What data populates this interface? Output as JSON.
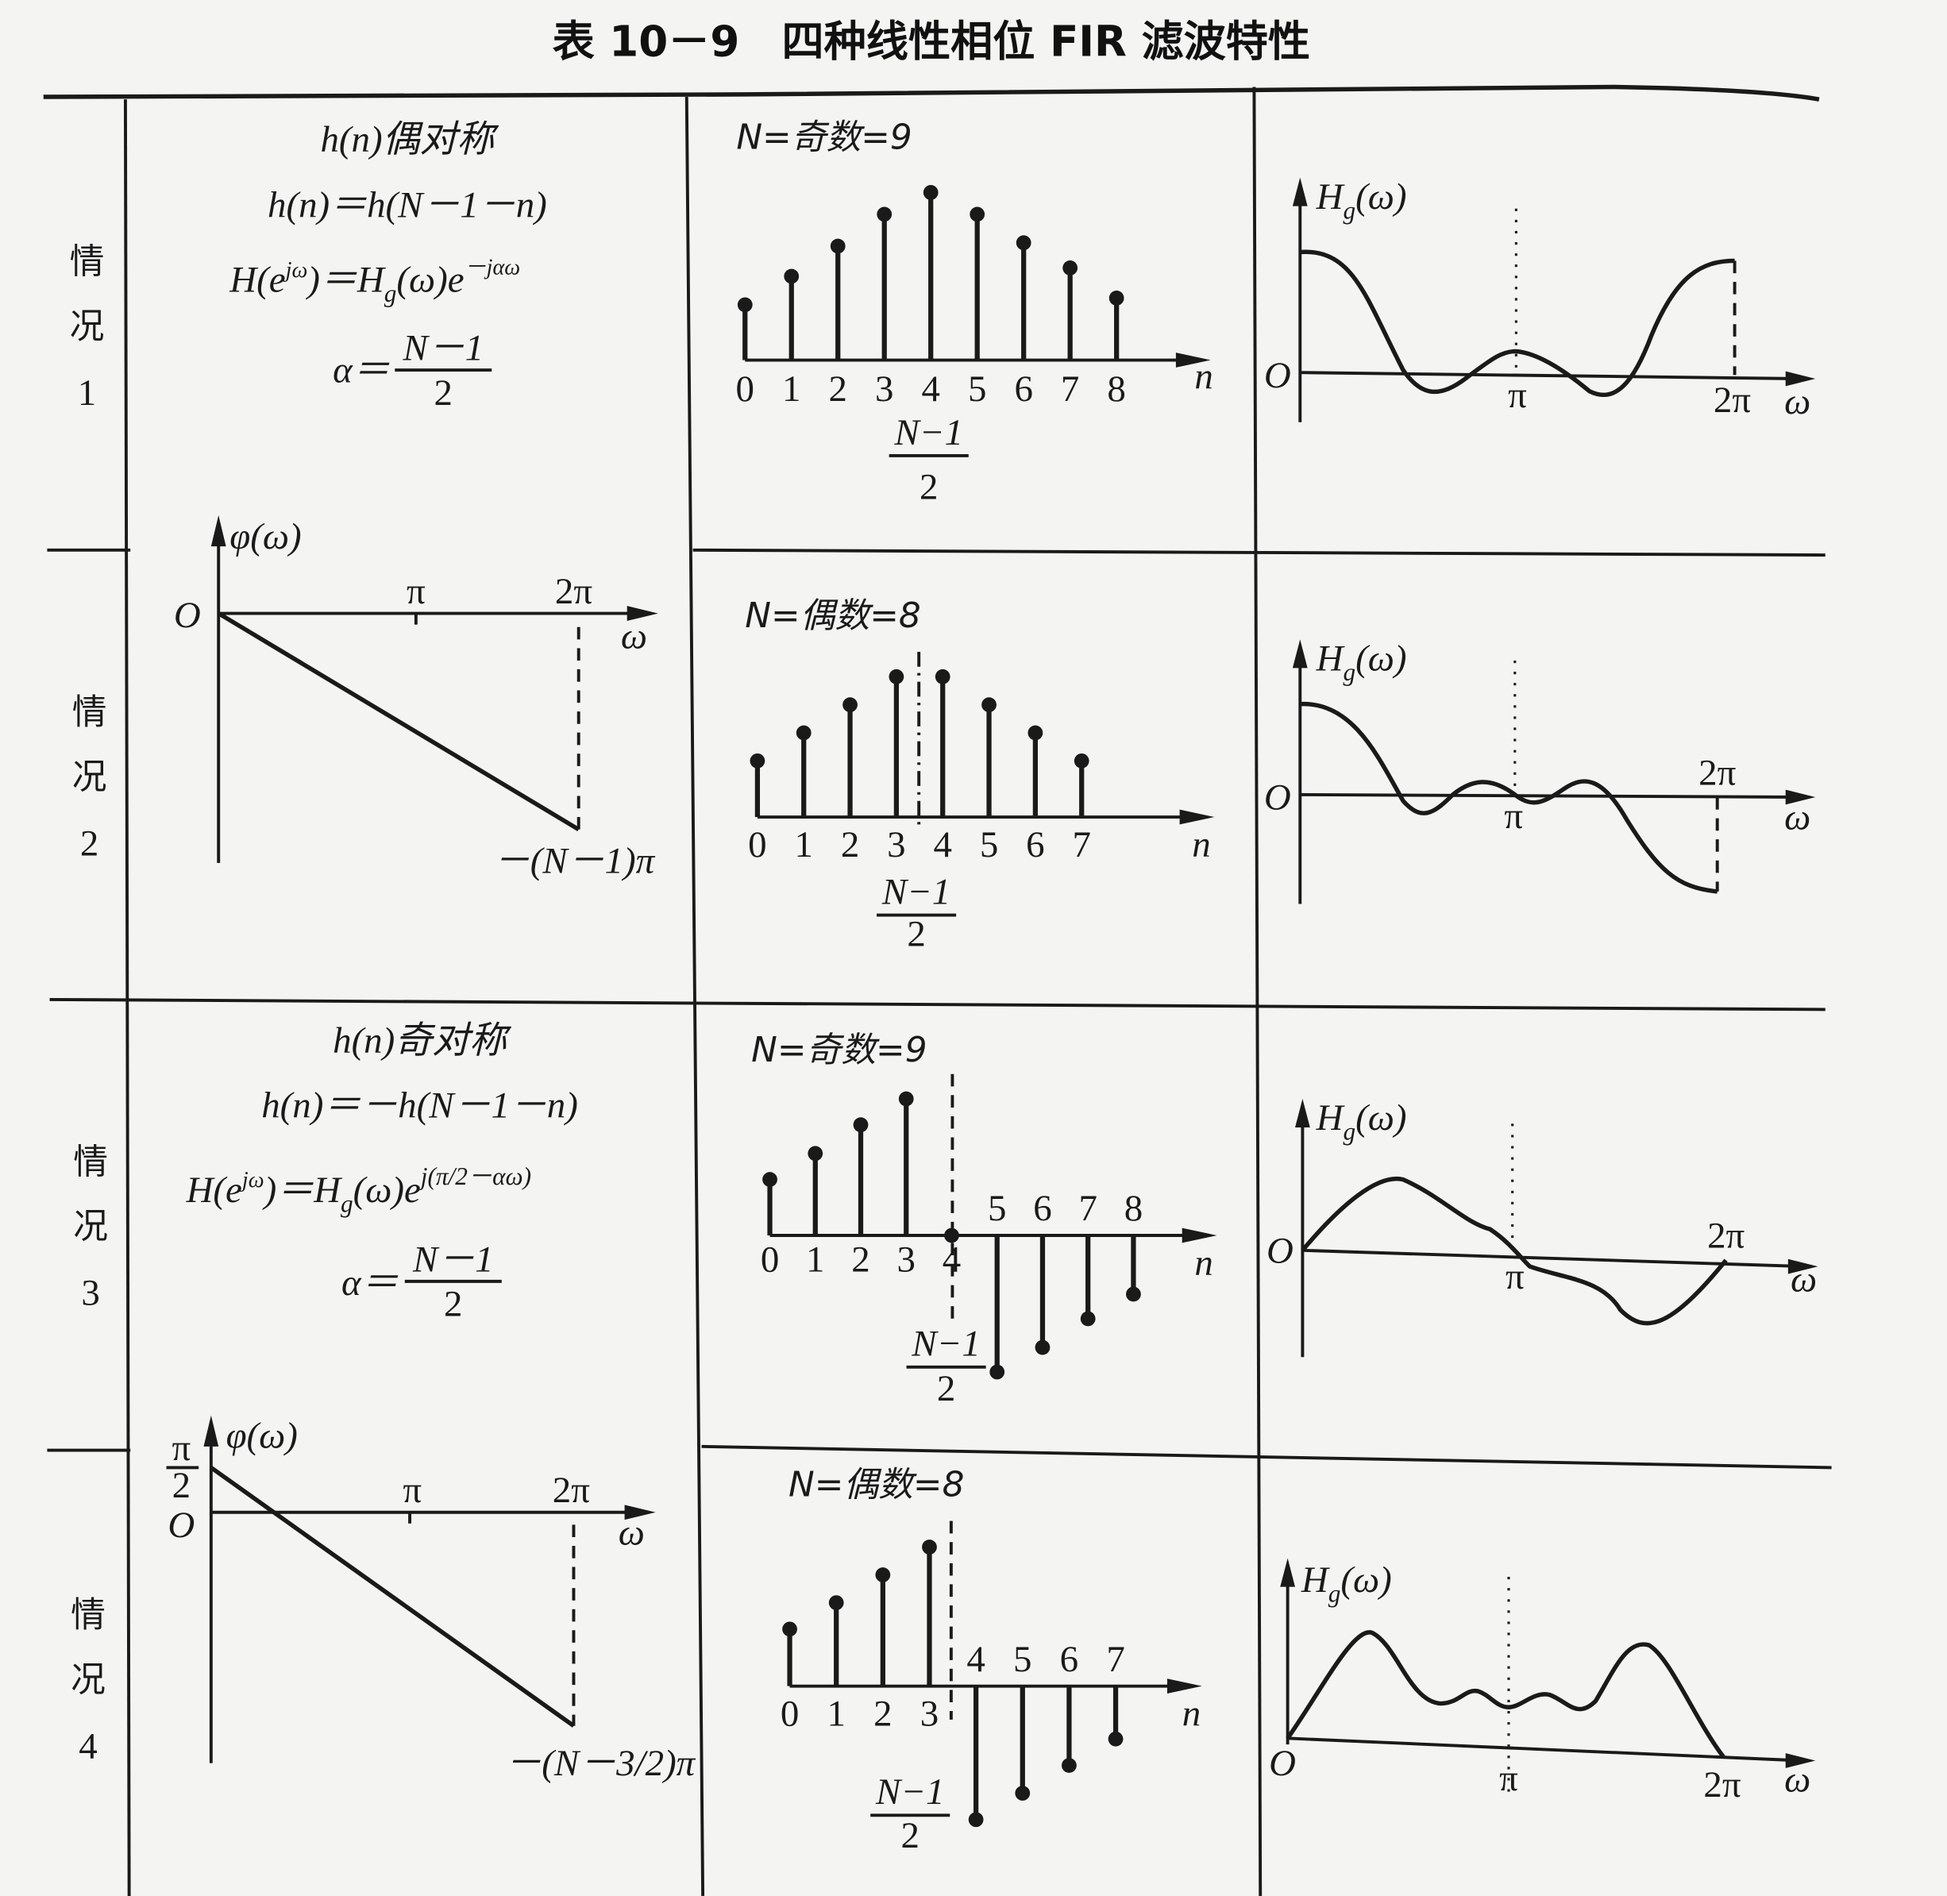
{
  "title": "表 10－9　四种线性相位 FIR 滤波特性",
  "cases": [
    {
      "c1": "情",
      "c2": "况",
      "num": "1"
    },
    {
      "c1": "情",
      "c2": "况",
      "num": "2"
    },
    {
      "c1": "情",
      "c2": "况",
      "num": "3"
    },
    {
      "c1": "情",
      "c2": "况",
      "num": "4"
    }
  ],
  "even_formulas": {
    "symmetry": "h(n)偶对称",
    "relation": "h(n)＝h(N－1－n)",
    "h_a": "H(e",
    "h_sup1": "jω",
    "h_b": ")＝H",
    "h_sub": "g",
    "h_c": "(ω)e",
    "h_sup2": "－jαω",
    "alpha": "α＝",
    "alpha_num": "N－1",
    "alpha_den": "2"
  },
  "odd_formulas": {
    "symmetry": "h(n)奇对称",
    "relation": "h(n)＝－h(N－1－n)",
    "h_a": "H(e",
    "h_sup1": "jω",
    "h_b": ")＝H",
    "h_sub": "g",
    "h_c": "(ω)e",
    "h_sup2": "j(π/2－αω)",
    "alpha": "α＝",
    "alpha_num": "N－1",
    "alpha_den": "2"
  },
  "phase_plots": [
    {
      "ylabel": "φ(ω)",
      "origin": "O",
      "pi": "π",
      "two_pi": "2π",
      "xlabel": "ω",
      "end_label": "－(N－1)π",
      "start_value": "0"
    },
    {
      "ylabel": "φ(ω)",
      "origin": "O",
      "pi": "π",
      "two_pi": "2π",
      "xlabel": "ω",
      "end_label": "－(N－3/2)π",
      "start_num": "π",
      "start_den": "2"
    }
  ],
  "stem_plots": [
    {
      "label": "N=奇数=9",
      "xlabel": "n",
      "center_num": "N−1",
      "center_den": "2",
      "n": [
        "0",
        "1",
        "2",
        "3",
        "4",
        "5",
        "6",
        "7",
        "8"
      ],
      "values": [
        0.33,
        0.5,
        0.68,
        0.87,
        1.0,
        0.87,
        0.7,
        0.55,
        0.37
      ]
    },
    {
      "label": "N=偶数=8",
      "xlabel": "n",
      "center_num": "N−1",
      "center_den": "2",
      "n": [
        "0",
        "1",
        "2",
        "3",
        "4",
        "5",
        "6",
        "7"
      ],
      "values": [
        0.4,
        0.6,
        0.8,
        1.0,
        1.0,
        0.8,
        0.6,
        0.4
      ]
    },
    {
      "label": "N=奇数=9",
      "xlabel": "n",
      "center_num": "N−1",
      "center_den": "2",
      "n": [
        "0",
        "1",
        "2",
        "3",
        "4",
        "5",
        "6",
        "7",
        "8"
      ],
      "values": [
        0.41,
        0.6,
        0.81,
        1.0,
        0,
        -1.0,
        -0.82,
        -0.61,
        -0.43
      ]
    },
    {
      "label": "N=偶数=8",
      "xlabel": "n",
      "center_num": "N−1",
      "center_den": "2",
      "n": [
        "0",
        "1",
        "2",
        "3",
        "4",
        "5",
        "6",
        "7"
      ],
      "values": [
        0.41,
        0.6,
        0.8,
        1.0,
        -0.96,
        -0.77,
        -0.57,
        -0.38
      ]
    }
  ],
  "hg_plots": [
    {
      "y_main": "H",
      "y_sub": "g",
      "y_rest": "(ω)",
      "origin": "O",
      "pi": "π",
      "two_pi": "2π",
      "xlabel": "ω"
    },
    {
      "y_main": "H",
      "y_sub": "g",
      "y_rest": "(ω)",
      "origin": "O",
      "pi": "π",
      "two_pi": "2π",
      "xlabel": "ω"
    },
    {
      "y_main": "H",
      "y_sub": "g",
      "y_rest": "(ω)",
      "origin": "O",
      "pi": "π",
      "two_pi": "2π",
      "xlabel": "ω"
    },
    {
      "y_main": "H",
      "y_sub": "g",
      "y_rest": "(ω)",
      "origin": "O",
      "pi": "π",
      "two_pi": "2π",
      "xlabel": "ω"
    }
  ]
}
